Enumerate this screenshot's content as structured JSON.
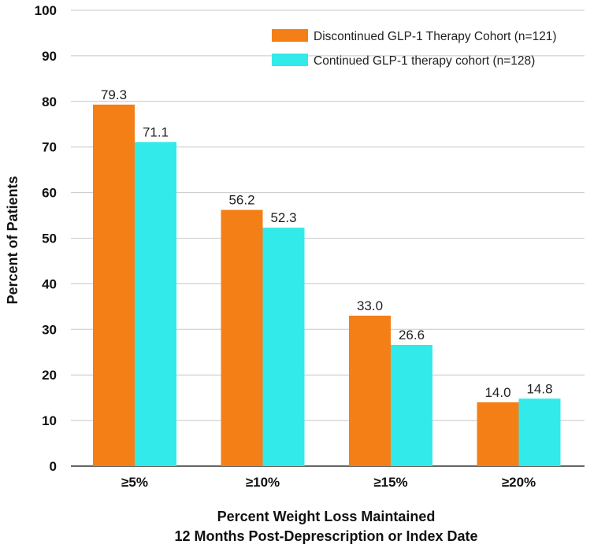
{
  "chart_data": {
    "type": "bar",
    "title": "",
    "xlabel_line1": "Percent Weight Loss Maintained",
    "xlabel_line2": "12 Months Post-Deprescription or Index Date",
    "ylabel": "Percent of Patients",
    "ylim": [
      0,
      100
    ],
    "yticks": [
      "0",
      "10",
      "20",
      "30",
      "40",
      "50",
      "60",
      "70",
      "80",
      "90",
      "100"
    ],
    "categories": [
      "≥5%",
      "≥10%",
      "≥15%",
      "≥20%"
    ],
    "grid": true,
    "legend_position": "top-right",
    "series": [
      {
        "name": "Discontinued GLP-1 Therapy Cohort (n=121)",
        "color": "#F57F17",
        "values": [
          79.3,
          56.2,
          33.0,
          14.0
        ],
        "labels": [
          "79.3",
          "56.2",
          "33.0",
          "14.0"
        ]
      },
      {
        "name": "Continued GLP-1 therapy cohort (n=128)",
        "color": "#33EAEA",
        "values": [
          71.1,
          52.3,
          26.6,
          14.8
        ],
        "labels": [
          "71.1",
          "52.3",
          "26.6",
          "14.8"
        ]
      }
    ]
  }
}
